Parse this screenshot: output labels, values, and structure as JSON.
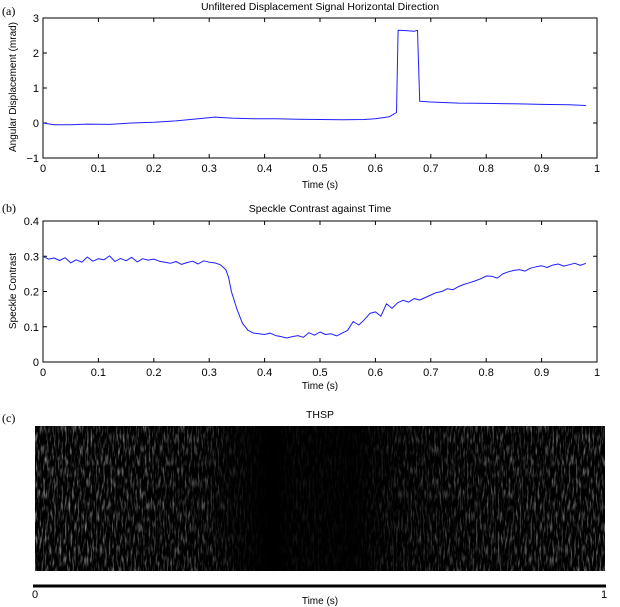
{
  "panel_labels": [
    "(a)",
    "(b)",
    "(c)"
  ],
  "colors": {
    "line": "#1f1fff",
    "axis": "#000000",
    "background": "#ffffff"
  },
  "chart_data": [
    {
      "type": "line",
      "title": "Unfiltered Displacement Signal Horizontal Direction",
      "xlabel": "Time (s)",
      "ylabel": "Angular Displacement (mrad)",
      "xlim": [
        0,
        1
      ],
      "ylim": [
        -1,
        3
      ],
      "xticks": [
        "0",
        "0.1",
        "0.2",
        "0.3",
        "0.4",
        "0.5",
        "0.6",
        "0.7",
        "0.8",
        "0.9",
        "1"
      ],
      "yticks": [
        "−1",
        "0",
        "1",
        "2",
        "3"
      ],
      "series": [
        {
          "x": [
            0,
            0.02,
            0.05,
            0.08,
            0.12,
            0.16,
            0.2,
            0.24,
            0.28,
            0.31,
            0.34,
            0.38,
            0.42,
            0.46,
            0.5,
            0.54,
            0.58,
            0.6,
            0.625,
            0.638,
            0.641,
            0.655,
            0.67,
            0.676,
            0.68,
            0.7,
            0.75,
            0.8,
            0.85,
            0.9,
            0.95,
            0.98
          ],
          "y": [
            0.0,
            -0.05,
            -0.05,
            -0.03,
            -0.04,
            0.0,
            0.02,
            0.06,
            0.12,
            0.17,
            0.14,
            0.12,
            0.12,
            0.11,
            0.1,
            0.09,
            0.1,
            0.12,
            0.18,
            0.3,
            2.65,
            2.64,
            2.62,
            2.65,
            0.62,
            0.6,
            0.57,
            0.56,
            0.55,
            0.53,
            0.52,
            0.5
          ]
        }
      ]
    },
    {
      "type": "line",
      "title": "Speckle Contrast against Time",
      "xlabel": "Time (s)",
      "ylabel": "Speckle Contrast",
      "xlim": [
        0,
        1
      ],
      "ylim": [
        0,
        0.4
      ],
      "xticks": [
        "0",
        "0.1",
        "0.2",
        "0.3",
        "0.4",
        "0.5",
        "0.6",
        "0.7",
        "0.8",
        "0.9",
        "1"
      ],
      "yticks": [
        "0",
        "0.1",
        "0.2",
        "0.3",
        "0.4"
      ],
      "series": [
        {
          "x": [
            0,
            0.01,
            0.02,
            0.03,
            0.04,
            0.05,
            0.06,
            0.07,
            0.08,
            0.09,
            0.1,
            0.11,
            0.12,
            0.13,
            0.14,
            0.15,
            0.16,
            0.17,
            0.18,
            0.19,
            0.2,
            0.21,
            0.22,
            0.23,
            0.24,
            0.25,
            0.26,
            0.27,
            0.28,
            0.29,
            0.3,
            0.31,
            0.32,
            0.33,
            0.335,
            0.34,
            0.35,
            0.36,
            0.37,
            0.38,
            0.39,
            0.4,
            0.41,
            0.42,
            0.43,
            0.44,
            0.45,
            0.46,
            0.47,
            0.48,
            0.49,
            0.5,
            0.51,
            0.52,
            0.53,
            0.54,
            0.55,
            0.56,
            0.57,
            0.58,
            0.59,
            0.6,
            0.61,
            0.62,
            0.63,
            0.64,
            0.65,
            0.66,
            0.67,
            0.68,
            0.69,
            0.7,
            0.71,
            0.72,
            0.73,
            0.74,
            0.75,
            0.76,
            0.77,
            0.78,
            0.79,
            0.8,
            0.81,
            0.82,
            0.83,
            0.84,
            0.85,
            0.86,
            0.87,
            0.88,
            0.89,
            0.9,
            0.91,
            0.92,
            0.93,
            0.94,
            0.95,
            0.96,
            0.97,
            0.98
          ],
          "y": [
            0.3,
            0.292,
            0.295,
            0.288,
            0.296,
            0.281,
            0.29,
            0.283,
            0.298,
            0.286,
            0.293,
            0.29,
            0.301,
            0.285,
            0.294,
            0.287,
            0.297,
            0.284,
            0.293,
            0.289,
            0.292,
            0.286,
            0.283,
            0.28,
            0.285,
            0.277,
            0.282,
            0.286,
            0.278,
            0.287,
            0.283,
            0.281,
            0.276,
            0.262,
            0.24,
            0.2,
            0.15,
            0.11,
            0.09,
            0.082,
            0.08,
            0.078,
            0.082,
            0.075,
            0.072,
            0.068,
            0.072,
            0.075,
            0.07,
            0.083,
            0.076,
            0.085,
            0.078,
            0.08,
            0.074,
            0.082,
            0.09,
            0.115,
            0.105,
            0.12,
            0.138,
            0.142,
            0.13,
            0.165,
            0.152,
            0.168,
            0.175,
            0.17,
            0.18,
            0.176,
            0.183,
            0.19,
            0.197,
            0.2,
            0.208,
            0.205,
            0.214,
            0.22,
            0.225,
            0.23,
            0.236,
            0.244,
            0.243,
            0.238,
            0.25,
            0.256,
            0.26,
            0.262,
            0.258,
            0.266,
            0.27,
            0.273,
            0.268,
            0.275,
            0.278,
            0.272,
            0.276,
            0.28,
            0.274,
            0.28
          ]
        }
      ]
    },
    {
      "type": "heatmap",
      "title": "THSP",
      "xlabel": "Time (s)",
      "xlim": [
        0,
        1
      ],
      "xticks": [
        "0",
        "1"
      ],
      "colormap": "gray"
    }
  ]
}
